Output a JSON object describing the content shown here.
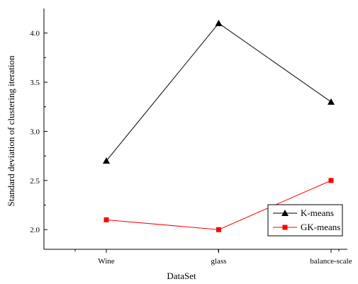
{
  "chart_data": {
    "type": "line",
    "categories": [
      "Wine",
      "glass",
      "balance-scale"
    ],
    "series": [
      {
        "name": "K-means",
        "values": [
          2.7,
          4.1,
          3.3
        ],
        "color": "#000000",
        "marker": "triangle"
      },
      {
        "name": "GK-means",
        "values": [
          2.1,
          2.0,
          2.5
        ],
        "color": "#ff0000",
        "marker": "square"
      }
    ],
    "xlabel": "DataSet",
    "ylabel": "Standard deviation of clustering iteration",
    "ylim": [
      1.8,
      4.25
    ],
    "yticks": [
      "2.0",
      "2.5",
      "3.0",
      "3.5",
      "4.0"
    ],
    "grid": false,
    "legend_position": "bottom-right"
  }
}
